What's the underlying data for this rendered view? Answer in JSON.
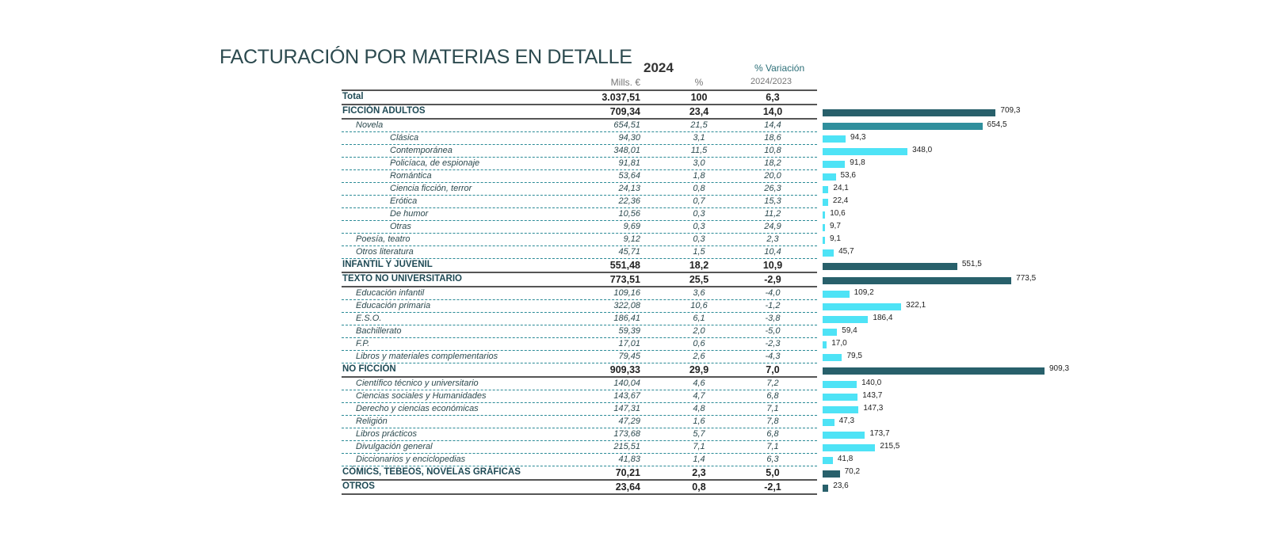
{
  "chart_data": {
    "type": "bar",
    "title": "FACTURACIÓN POR MATERIAS EN DETALLE",
    "headers": {
      "year": "2024",
      "variation": "% Variación",
      "mills": "Mills. €",
      "pct": "%",
      "years": "2024/2023"
    },
    "colors": {
      "category": "#28606b",
      "subgroup": "#2f8f9d",
      "item": "#4ee3f6"
    },
    "rows": [
      {
        "label": "Total",
        "level": 0,
        "kind": "total",
        "mills": "3.037,51",
        "pct": "100",
        "var": "6,3"
      },
      {
        "label": "FICCIÓN ADULTOS",
        "level": 0,
        "kind": "category",
        "mills": "709,34",
        "pct": "23,4",
        "var": "14,0",
        "value": 709.3,
        "value_label": "709,3"
      },
      {
        "label": "Novela",
        "level": 1,
        "kind": "subgroup",
        "mills": "654,51",
        "pct": "21,5",
        "var": "14,4",
        "value": 654.5,
        "value_label": "654,5"
      },
      {
        "label": "Clásica",
        "level": 2,
        "kind": "item",
        "mills": "94,30",
        "pct": "3,1",
        "var": "18,6",
        "value": 94.3,
        "value_label": "94,3"
      },
      {
        "label": "Contemporánea",
        "level": 2,
        "kind": "item",
        "mills": "348,01",
        "pct": "11,5",
        "var": "10,8",
        "value": 348.0,
        "value_label": "348,0"
      },
      {
        "label": "Policíaca, de espionaje",
        "level": 2,
        "kind": "item",
        "mills": "91,81",
        "pct": "3,0",
        "var": "18,2",
        "value": 91.8,
        "value_label": "91,8"
      },
      {
        "label": "Romántica",
        "level": 2,
        "kind": "item",
        "mills": "53,64",
        "pct": "1,8",
        "var": "20,0",
        "value": 53.6,
        "value_label": "53,6"
      },
      {
        "label": "Ciencia ficción, terror",
        "level": 2,
        "kind": "item",
        "mills": "24,13",
        "pct": "0,8",
        "var": "26,3",
        "value": 24.1,
        "value_label": "24,1"
      },
      {
        "label": "Erótica",
        "level": 2,
        "kind": "item",
        "mills": "22,36",
        "pct": "0,7",
        "var": "15,3",
        "value": 22.4,
        "value_label": "22,4"
      },
      {
        "label": "De humor",
        "level": 2,
        "kind": "item",
        "mills": "10,56",
        "pct": "0,3",
        "var": "11,2",
        "value": 10.6,
        "value_label": "10,6"
      },
      {
        "label": "Otras",
        "level": 2,
        "kind": "item",
        "mills": "9,69",
        "pct": "0,3",
        "var": "24,9",
        "value": 9.7,
        "value_label": "9,7"
      },
      {
        "label": "Poesía, teatro",
        "level": 1,
        "kind": "item",
        "mills": "9,12",
        "pct": "0,3",
        "var": "2,3",
        "value": 9.1,
        "value_label": "9,1"
      },
      {
        "label": "Otros literatura",
        "level": 1,
        "kind": "item",
        "mills": "45,71",
        "pct": "1,5",
        "var": "10,4",
        "value": 45.7,
        "value_label": "45,7"
      },
      {
        "label": "INFANTIL Y JUVENIL",
        "level": 0,
        "kind": "category",
        "mills": "551,48",
        "pct": "18,2",
        "var": "10,9",
        "value": 551.5,
        "value_label": "551,5"
      },
      {
        "label": "TEXTO NO UNIVERSITARIO",
        "level": 0,
        "kind": "category",
        "mills": "773,51",
        "pct": "25,5",
        "var": "-2,9",
        "value": 773.5,
        "value_label": "773,5"
      },
      {
        "label": "Educación infantil",
        "level": 1,
        "kind": "item",
        "mills": "109,16",
        "pct": "3,6",
        "var": "-4,0",
        "value": 109.2,
        "value_label": "109,2"
      },
      {
        "label": "Educación primaria",
        "level": 1,
        "kind": "item",
        "mills": "322,08",
        "pct": "10,6",
        "var": "-1,2",
        "value": 322.1,
        "value_label": "322,1"
      },
      {
        "label": "E.S.O.",
        "level": 1,
        "kind": "item",
        "mills": "186,41",
        "pct": "6,1",
        "var": "-3,8",
        "value": 186.4,
        "value_label": "186,4"
      },
      {
        "label": "Bachillerato",
        "level": 1,
        "kind": "item",
        "mills": "59,39",
        "pct": "2,0",
        "var": "-5,0",
        "value": 59.4,
        "value_label": "59,4"
      },
      {
        "label": "F.P.",
        "level": 1,
        "kind": "item",
        "mills": "17,01",
        "pct": "0,6",
        "var": "-2,3",
        "value": 17.0,
        "value_label": "17,0"
      },
      {
        "label": "Libros y materiales complementarios",
        "level": 1,
        "kind": "item",
        "mills": "79,45",
        "pct": "2,6",
        "var": "-4,3",
        "value": 79.5,
        "value_label": "79,5"
      },
      {
        "label": "NO FICCIÓN",
        "level": 0,
        "kind": "category",
        "mills": "909,33",
        "pct": "29,9",
        "var": "7,0",
        "value": 909.3,
        "value_label": "909,3"
      },
      {
        "label": "Científico técnico y universitario",
        "level": 1,
        "kind": "item",
        "mills": "140,04",
        "pct": "4,6",
        "var": "7,2",
        "value": 140.0,
        "value_label": "140,0"
      },
      {
        "label": "Ciencias sociales y Humanidades",
        "level": 1,
        "kind": "item",
        "mills": "143,67",
        "pct": "4,7",
        "var": "6,8",
        "value": 143.7,
        "value_label": "143,7"
      },
      {
        "label": "Derecho y ciencias económicas",
        "level": 1,
        "kind": "item",
        "mills": "147,31",
        "pct": "4,8",
        "var": "7,1",
        "value": 147.3,
        "value_label": "147,3"
      },
      {
        "label": "Religión",
        "level": 1,
        "kind": "item",
        "mills": "47,29",
        "pct": "1,6",
        "var": "7,8",
        "value": 47.3,
        "value_label": "47,3"
      },
      {
        "label": "Libros prácticos",
        "level": 1,
        "kind": "item",
        "mills": "173,68",
        "pct": "5,7",
        "var": "6,8",
        "value": 173.7,
        "value_label": "173,7"
      },
      {
        "label": "Divulgación general",
        "level": 1,
        "kind": "item",
        "mills": "215,51",
        "pct": "7,1",
        "var": "7,1",
        "value": 215.5,
        "value_label": "215,5"
      },
      {
        "label": "Diccionarios y enciclopedias",
        "level": 1,
        "kind": "item",
        "mills": "41,83",
        "pct": "1,4",
        "var": "6,3",
        "value": 41.8,
        "value_label": "41,8"
      },
      {
        "label": "CÓMICS, TEBEOS, NOVELAS GRÁFICAS",
        "level": 0,
        "kind": "category",
        "mills": "70,21",
        "pct": "2,3",
        "var": "5,0",
        "value": 70.2,
        "value_label": "70,2"
      },
      {
        "label": "OTROS",
        "level": 0,
        "kind": "category",
        "mills": "23,64",
        "pct": "0,8",
        "var": "-2,1",
        "value": 23.6,
        "value_label": "23,6"
      }
    ]
  }
}
